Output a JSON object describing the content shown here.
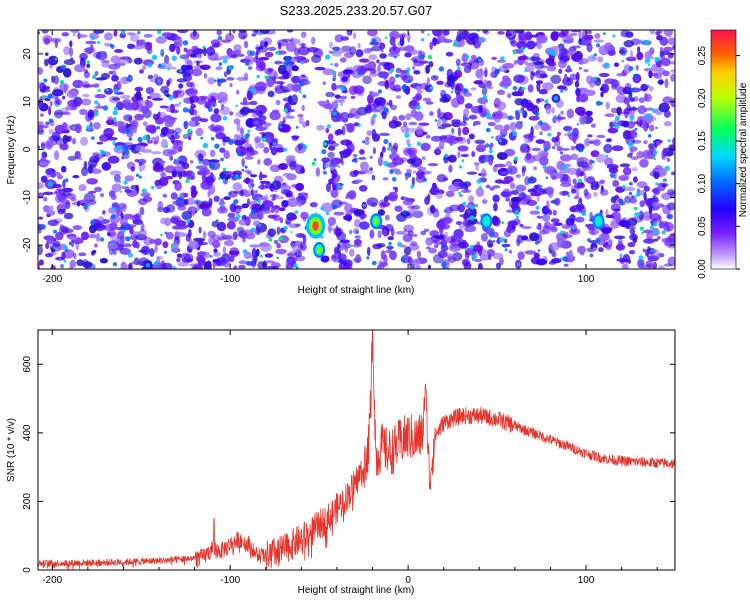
{
  "figure": {
    "title": "S233.2025.233.20.57.G07"
  },
  "chart_data": [
    {
      "type": "heatmap",
      "title": "S233.2025.233.20.57.G07",
      "xlabel": "Height of straight line (km)",
      "ylabel": "Frequency (Hz)",
      "xlim": [
        -208,
        150
      ],
      "ylim": [
        -25,
        25
      ],
      "x_ticks": [
        -200,
        -100,
        0,
        100
      ],
      "y_ticks": [
        -20,
        -10,
        0,
        10,
        20
      ],
      "colorbar": {
        "label": "Normalized spectral amplitude",
        "range": [
          0,
          0.28
        ],
        "ticks": [
          0.0,
          0.05,
          0.1,
          0.15,
          0.2,
          0.25
        ],
        "colors": [
          "#ffffff",
          "#b080ff",
          "#6a00ff",
          "#0000ff",
          "#00c8ff",
          "#00ff40",
          "#ffff00",
          "#ff8000",
          "#ff0040"
        ]
      },
      "hotspots": [
        {
          "x": -52,
          "y": -16,
          "value": 0.27
        },
        {
          "x": -50,
          "y": -21,
          "value": 0.12
        },
        {
          "x": -18,
          "y": -15,
          "value": 0.12
        },
        {
          "x": 44,
          "y": -15,
          "value": 0.1
        },
        {
          "x": 107,
          "y": -15,
          "value": 0.11
        }
      ],
      "grid": false
    },
    {
      "type": "line",
      "xlabel": "Height of straight line (km)",
      "ylabel": "SNR (10 * v/v)",
      "xlim": [
        -208,
        150
      ],
      "ylim": [
        0,
        700
      ],
      "x_ticks": [
        -200,
        -100,
        0,
        100
      ],
      "y_ticks": [
        0,
        200,
        400,
        600
      ],
      "color": "#e8322a",
      "grid": false,
      "series": [
        {
          "x": [
            -208,
            -190,
            -170,
            -150,
            -130,
            -115,
            -110,
            -105,
            -100,
            -95,
            -90,
            -85,
            -80,
            -70,
            -60,
            -55,
            -50,
            -45,
            -40,
            -35,
            -30,
            -25,
            -22,
            -20,
            -18,
            -15,
            -10,
            -5,
            0,
            5,
            8,
            10,
            12,
            15,
            20,
            25,
            30,
            40,
            50,
            60,
            70,
            80,
            90,
            100,
            110,
            120,
            130,
            140,
            150
          ],
          "values": [
            20,
            20,
            22,
            25,
            30,
            38,
            60,
            55,
            75,
            90,
            80,
            45,
            40,
            60,
            90,
            110,
            130,
            150,
            180,
            210,
            250,
            300,
            360,
            700,
            320,
            360,
            340,
            370,
            390,
            380,
            400,
            500,
            260,
            390,
            430,
            440,
            450,
            450,
            440,
            420,
            400,
            380,
            360,
            340,
            325,
            318,
            315,
            312,
            310
          ],
          "spikes": [
            {
              "x": -20,
              "value": 700
            },
            {
              "x": -21,
              "value": 445
            },
            {
              "x": 10,
              "value": 525
            },
            {
              "x": -109,
              "value": 150
            }
          ]
        }
      ]
    }
  ]
}
